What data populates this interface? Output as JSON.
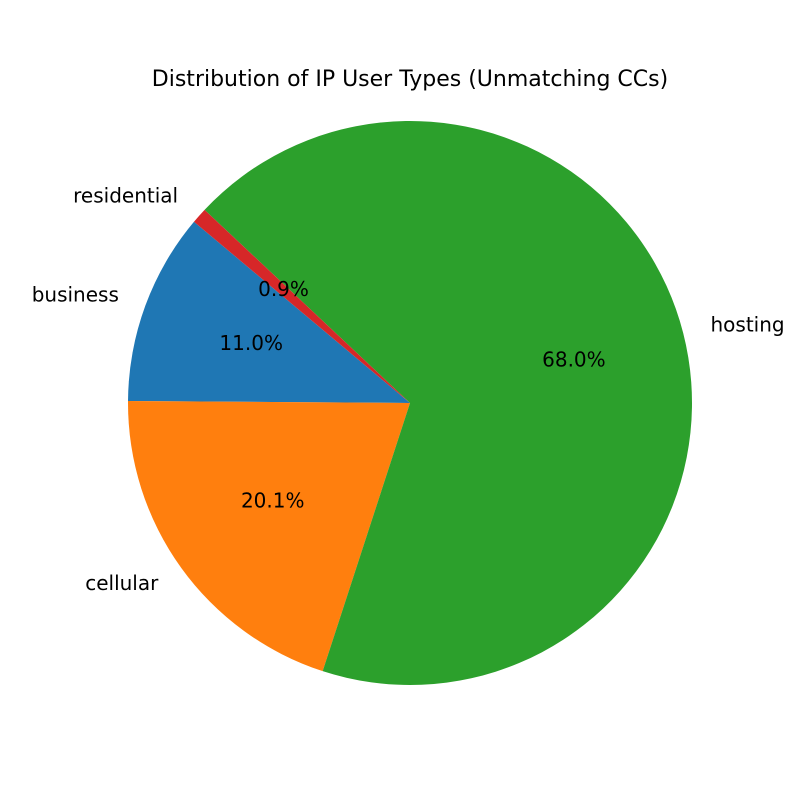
{
  "chart_data": {
    "type": "pie",
    "title": "Distribution of IP User Types (Unmatching CCs)",
    "categories": [
      "business",
      "cellular",
      "hosting",
      "residential"
    ],
    "values": [
      11.0,
      20.1,
      68.0,
      0.9
    ],
    "value_labels": [
      "11.0%",
      "20.1%",
      "68.0%",
      "0.9%"
    ],
    "colors": [
      "#1f77b4",
      "#ff7f0e",
      "#2ca02c",
      "#d62728"
    ]
  }
}
